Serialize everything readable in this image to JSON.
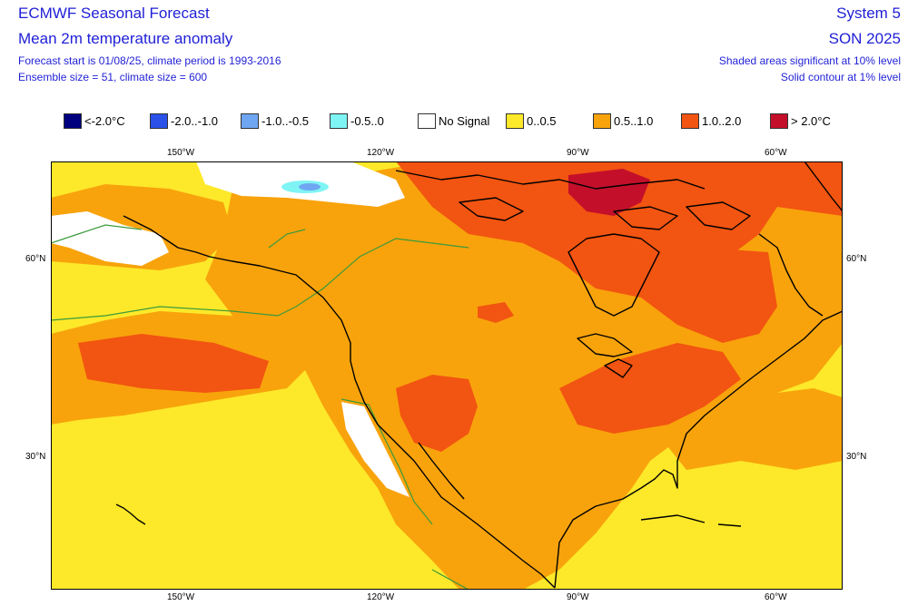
{
  "header": {
    "title": "ECMWF Seasonal Forecast",
    "subtitle": "Mean 2m temperature anomaly",
    "forecast_info": "Forecast start is 01/08/25, climate period is 1993-2016",
    "ensemble_info": "Ensemble size = 51, climate size = 600",
    "system": "System 5",
    "season": "SON 2025",
    "significance_note": "Shaded areas significant at 10% level",
    "contour_note": "Solid contour at 1% level"
  },
  "legend": [
    {
      "label": "<-2.0°C",
      "color": "#00007f"
    },
    {
      "label": "-2.0..-1.0",
      "color": "#2a52e8"
    },
    {
      "label": "-1.0..-0.5",
      "color": "#6fa6f2"
    },
    {
      "label": "-0.5..0",
      "color": "#7ff4f4"
    },
    {
      "label": "No Signal",
      "color": "#ffffff"
    },
    {
      "label": "0..0.5",
      "color": "#fde92a"
    },
    {
      "label": "0.5..1.0",
      "color": "#f8a30c"
    },
    {
      "label": "1.0..2.0",
      "color": "#f25411"
    },
    {
      "label": "> 2.0°C",
      "color": "#c40f2a"
    }
  ],
  "axes": {
    "top_lon": [
      "150°W",
      "120°W",
      "90°W",
      "60°W"
    ],
    "bottom_lon": [
      "150°W",
      "120°W",
      "90°W",
      "60°W"
    ],
    "left_lat": [
      "60°N",
      "30°N"
    ],
    "right_lat": [
      "60°N",
      "30°N"
    ]
  }
}
